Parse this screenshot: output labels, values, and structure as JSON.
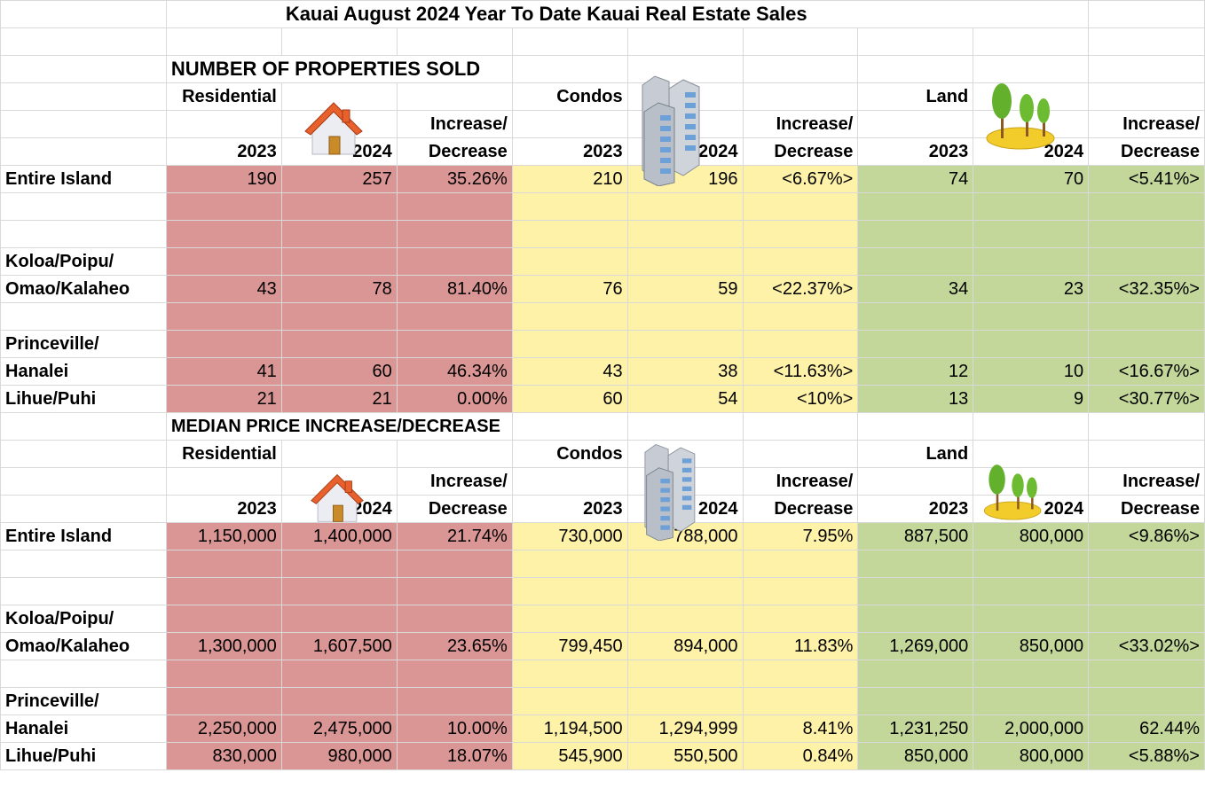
{
  "title": "Kauai August 2024 Year To Date Kauai Real Estate Sales",
  "labels": {
    "residential": "Residential",
    "condos": "Condos",
    "land": "Land",
    "increase": "Increase/",
    "decrease": "Decrease",
    "y2023": "2023",
    "y2024": "2024"
  },
  "sections": [
    {
      "heading": "NUMBER OF PROPERTIES SOLD",
      "rows": [
        {
          "area1": "Entire Island",
          "area2": "",
          "res": [
            "190",
            "257",
            "35.26%"
          ],
          "con": [
            "210",
            "196",
            "<6.67%>"
          ],
          "land": [
            "74",
            "70",
            "<5.41%>"
          ]
        },
        {
          "area1": "Koloa/Poipu/",
          "area2": "Omao/Kalaheo",
          "res": [
            "43",
            "78",
            "81.40%"
          ],
          "con": [
            "76",
            "59",
            "<22.37%>"
          ],
          "land": [
            "34",
            "23",
            "<32.35%>"
          ]
        },
        {
          "area1": "Princeville/",
          "area2": "Hanalei",
          "res": [
            "41",
            "60",
            "46.34%"
          ],
          "con": [
            "43",
            "38",
            "<11.63%>"
          ],
          "land": [
            "12",
            "10",
            "<16.67%>"
          ]
        },
        {
          "area1": "Lihue/Puhi",
          "area2": "",
          "res": [
            "21",
            "21",
            "0.00%"
          ],
          "con": [
            "60",
            "54",
            "<10%>"
          ],
          "land": [
            "13",
            "9",
            "<30.77%>"
          ]
        }
      ]
    },
    {
      "heading": "MEDIAN PRICE INCREASE/DECREASE",
      "rows": [
        {
          "area1": "Entire Island",
          "area2": "",
          "res": [
            "1,150,000",
            "1,400,000",
            "21.74%"
          ],
          "con": [
            "730,000",
            "788,000",
            "7.95%"
          ],
          "land": [
            "887,500",
            "800,000",
            "<9.86%>"
          ]
        },
        {
          "area1": "Koloa/Poipu/",
          "area2": "Omao/Kalaheo",
          "res": [
            "1,300,000",
            "1,607,500",
            "23.65%"
          ],
          "con": [
            "799,450",
            "894,000",
            "11.83%"
          ],
          "land": [
            "1,269,000",
            "850,000",
            "<33.02%>"
          ]
        },
        {
          "area1": "Princeville/",
          "area2": "Hanalei",
          "res": [
            "2,250,000",
            "2,475,000",
            "10.00%"
          ],
          "con": [
            "1,194,500",
            "1,294,999",
            "8.41%"
          ],
          "land": [
            "1,231,250",
            "2,000,000",
            "62.44%"
          ]
        },
        {
          "area1": "Lihue/Puhi",
          "area2": "",
          "res": [
            "830,000",
            "980,000",
            "18.07%"
          ],
          "con": [
            "545,900",
            "550,500",
            "0.84%"
          ],
          "land": [
            "850,000",
            "800,000",
            "<5.88%>"
          ]
        }
      ]
    }
  ]
}
